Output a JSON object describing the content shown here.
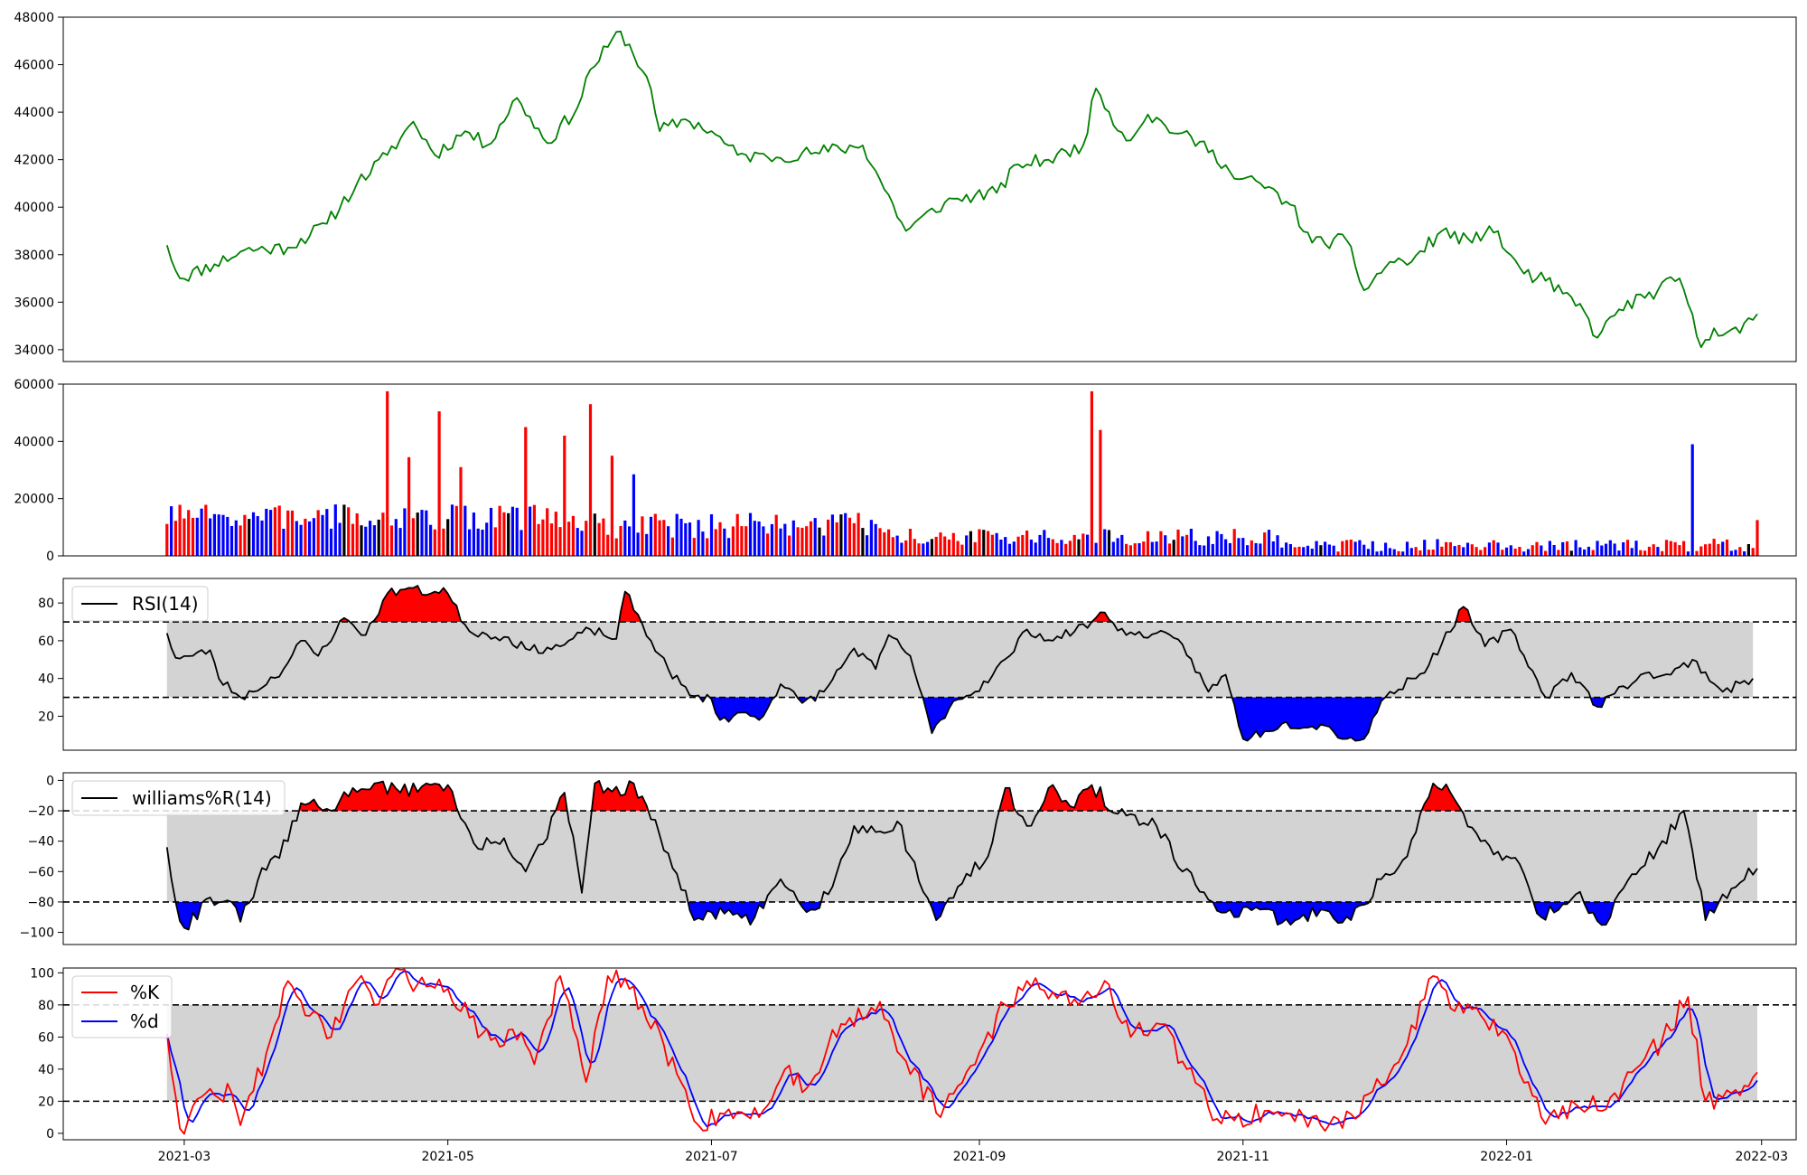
{
  "chart_data": [
    {
      "type": "line",
      "panel": "price",
      "yticks": [
        "34000",
        "36000",
        "38000",
        "40000",
        "42000",
        "44000",
        "46000",
        "48000"
      ],
      "ylim": [
        33500,
        48000
      ],
      "line_color": "#008000",
      "anchor_points": [
        [
          "2021-02-25",
          38400
        ],
        [
          "2021-02-28",
          37000
        ],
        [
          "2021-03-08",
          37600
        ],
        [
          "2021-03-15",
          38200
        ],
        [
          "2021-03-25",
          38300
        ],
        [
          "2021-04-03",
          39300
        ],
        [
          "2021-04-10",
          41000
        ],
        [
          "2021-04-17",
          42200
        ],
        [
          "2021-04-23",
          43600
        ],
        [
          "2021-04-28",
          42200
        ],
        [
          "2021-05-05",
          43200
        ],
        [
          "2021-05-10",
          42600
        ],
        [
          "2021-05-17",
          44600
        ],
        [
          "2021-05-24",
          42700
        ],
        [
          "2021-05-31",
          44200
        ],
        [
          "2021-06-03",
          45800
        ],
        [
          "2021-06-10",
          47400
        ],
        [
          "2021-06-16",
          45500
        ],
        [
          "2021-06-19",
          43200
        ],
        [
          "2021-06-25",
          43700
        ],
        [
          "2021-07-01",
          43200
        ],
        [
          "2021-07-07",
          42200
        ],
        [
          "2021-07-14",
          42100
        ],
        [
          "2021-07-25",
          42300
        ],
        [
          "2021-08-05",
          42600
        ],
        [
          "2021-08-15",
          39000
        ],
        [
          "2021-08-24",
          40200
        ],
        [
          "2021-08-31",
          40500
        ],
        [
          "2021-09-05",
          40600
        ],
        [
          "2021-09-10",
          41800
        ],
        [
          "2021-09-17",
          42000
        ],
        [
          "2021-09-25",
          42600
        ],
        [
          "2021-09-28",
          45000
        ],
        [
          "2021-10-05",
          42800
        ],
        [
          "2021-10-10",
          43900
        ],
        [
          "2021-10-17",
          43100
        ],
        [
          "2021-10-25",
          42400
        ],
        [
          "2021-10-30",
          41200
        ],
        [
          "2021-11-05",
          41000
        ],
        [
          "2021-11-12",
          40100
        ],
        [
          "2021-11-17",
          38500
        ],
        [
          "2021-11-25",
          38600
        ],
        [
          "2021-11-29",
          36500
        ],
        [
          "2021-12-05",
          37700
        ],
        [
          "2021-12-10",
          37700
        ],
        [
          "2021-12-17",
          39000
        ],
        [
          "2021-12-24",
          38500
        ],
        [
          "2021-12-28",
          39200
        ],
        [
          "2022-01-05",
          37200
        ],
        [
          "2022-01-10",
          36900
        ],
        [
          "2022-01-19",
          35600
        ],
        [
          "2022-01-22",
          34500
        ],
        [
          "2022-01-27",
          35700
        ],
        [
          "2022-02-05",
          36500
        ],
        [
          "2022-02-10",
          37000
        ],
        [
          "2022-02-15",
          34100
        ],
        [
          "2022-02-18",
          34900
        ],
        [
          "2022-02-24",
          34700
        ],
        [
          "2022-02-28",
          35500
        ]
      ]
    },
    {
      "type": "bar",
      "panel": "volume",
      "yticks": [
        "0",
        "20000",
        "40000",
        "60000"
      ],
      "ylim": [
        0,
        60000
      ],
      "colors": {
        "up": "#ff0000",
        "down": "#0000ff",
        "flat": "#000000"
      },
      "spikes": [
        [
          "2021-04-17",
          57500,
          "up"
        ],
        [
          "2021-04-22",
          34500,
          "up"
        ],
        [
          "2021-04-29",
          50500,
          "up"
        ],
        [
          "2021-05-04",
          31000,
          "up"
        ],
        [
          "2021-05-19",
          45000,
          "up"
        ],
        [
          "2021-05-28",
          42000,
          "up"
        ],
        [
          "2021-06-03",
          53000,
          "up"
        ],
        [
          "2021-06-08",
          35000,
          "up"
        ],
        [
          "2021-06-13",
          28500,
          "down"
        ],
        [
          "2021-09-27",
          57500,
          "up"
        ],
        [
          "2021-09-29",
          44000,
          "up"
        ],
        [
          "2022-02-13",
          39000,
          "down"
        ],
        [
          "2022-02-28",
          12500,
          "up"
        ]
      ]
    },
    {
      "type": "line",
      "panel": "rsi",
      "legend": "RSI(14)",
      "yticks": [
        "20",
        "40",
        "60",
        "80"
      ],
      "ylim": [
        2,
        93
      ],
      "thresholds": [
        30,
        70
      ],
      "anchor_points": [
        [
          "2021-02-25",
          64
        ],
        [
          "2021-02-27",
          51
        ],
        [
          "2021-03-03",
          52
        ],
        [
          "2021-03-07",
          55
        ],
        [
          "2021-03-09",
          40
        ],
        [
          "2021-03-14",
          30
        ],
        [
          "2021-03-17",
          33
        ],
        [
          "2021-03-24",
          45
        ],
        [
          "2021-03-28",
          60
        ],
        [
          "2021-04-01",
          52
        ],
        [
          "2021-04-07",
          72
        ],
        [
          "2021-04-12",
          63
        ],
        [
          "2021-04-17",
          85
        ],
        [
          "2021-04-22",
          88
        ],
        [
          "2021-04-27",
          85
        ],
        [
          "2021-04-30",
          88
        ],
        [
          "2021-05-06",
          65
        ],
        [
          "2021-05-14",
          62
        ],
        [
          "2021-05-20",
          55
        ],
        [
          "2021-05-27",
          57
        ],
        [
          "2021-06-03",
          66
        ],
        [
          "2021-06-09",
          61
        ],
        [
          "2021-06-11",
          86
        ],
        [
          "2021-06-17",
          60
        ],
        [
          "2021-06-21",
          45
        ],
        [
          "2021-06-26",
          31
        ],
        [
          "2021-07-01",
          29
        ],
        [
          "2021-07-03",
          18
        ],
        [
          "2021-07-09",
          22
        ],
        [
          "2021-07-12",
          18
        ],
        [
          "2021-07-17",
          37
        ],
        [
          "2021-07-22",
          27
        ],
        [
          "2021-07-27",
          33
        ],
        [
          "2021-08-03",
          56
        ],
        [
          "2021-08-08",
          45
        ],
        [
          "2021-08-11",
          63
        ],
        [
          "2021-08-16",
          52
        ],
        [
          "2021-08-21",
          11
        ],
        [
          "2021-08-26",
          28
        ],
        [
          "2021-08-31",
          33
        ],
        [
          "2021-09-08",
          52
        ],
        [
          "2021-09-12",
          66
        ],
        [
          "2021-09-18",
          60
        ],
        [
          "2021-09-27",
          70
        ],
        [
          "2021-09-30",
          75
        ],
        [
          "2021-10-05",
          63
        ],
        [
          "2021-10-12",
          64
        ],
        [
          "2021-10-18",
          58
        ],
        [
          "2021-10-24",
          33
        ],
        [
          "2021-10-28",
          42
        ],
        [
          "2021-11-01",
          8
        ],
        [
          "2021-11-06",
          12
        ],
        [
          "2021-11-10",
          16
        ],
        [
          "2021-11-20",
          15
        ],
        [
          "2021-11-25",
          8
        ],
        [
          "2021-11-29",
          8
        ],
        [
          "2021-12-03",
          28
        ],
        [
          "2021-12-10",
          40
        ],
        [
          "2021-12-14",
          47
        ],
        [
          "2021-12-22",
          78
        ],
        [
          "2021-12-27",
          57
        ],
        [
          "2022-01-02",
          66
        ],
        [
          "2022-01-10",
          30
        ],
        [
          "2022-01-16",
          43
        ],
        [
          "2022-01-22",
          25
        ],
        [
          "2022-01-26",
          32
        ],
        [
          "2022-02-01",
          42
        ],
        [
          "2022-02-08",
          42
        ],
        [
          "2022-02-13",
          50
        ],
        [
          "2022-02-20",
          33
        ],
        [
          "2022-02-27",
          40
        ]
      ]
    },
    {
      "type": "line",
      "panel": "williams",
      "legend": "williams%R(14)",
      "yticks": [
        "0",
        "−20",
        "−40",
        "−60",
        "−80",
        "−100"
      ],
      "ylim": [
        -108,
        5
      ],
      "thresholds": [
        -20,
        -80
      ],
      "anchor_points": [
        [
          "2021-02-25",
          -44
        ],
        [
          "2021-02-27",
          -80
        ],
        [
          "2021-03-01",
          -97
        ],
        [
          "2021-03-07",
          -77
        ],
        [
          "2021-03-11",
          -79
        ],
        [
          "2021-03-14",
          -93
        ],
        [
          "2021-03-18",
          -66
        ],
        [
          "2021-03-25",
          -40
        ],
        [
          "2021-03-28",
          -15
        ],
        [
          "2021-04-04",
          -20
        ],
        [
          "2021-04-09",
          -5
        ],
        [
          "2021-04-14",
          -2
        ],
        [
          "2021-04-20",
          -8
        ],
        [
          "2021-04-26",
          -2
        ],
        [
          "2021-05-01",
          -3
        ],
        [
          "2021-05-04",
          -25
        ],
        [
          "2021-05-08",
          -45
        ],
        [
          "2021-05-14",
          -38
        ],
        [
          "2021-05-19",
          -60
        ],
        [
          "2021-05-23",
          -42
        ],
        [
          "2021-05-28",
          -8
        ],
        [
          "2021-06-01",
          -74
        ],
        [
          "2021-06-04",
          -2
        ],
        [
          "2021-06-10",
          -10
        ],
        [
          "2021-06-13",
          -2
        ],
        [
          "2021-06-21",
          -48
        ],
        [
          "2021-06-27",
          -92
        ],
        [
          "2021-07-05",
          -85
        ],
        [
          "2021-07-10",
          -95
        ],
        [
          "2021-07-17",
          -65
        ],
        [
          "2021-07-24",
          -85
        ],
        [
          "2021-07-29",
          -70
        ],
        [
          "2021-08-03",
          -30
        ],
        [
          "2021-08-08",
          -34
        ],
        [
          "2021-08-13",
          -27
        ],
        [
          "2021-08-16",
          -50
        ],
        [
          "2021-08-22",
          -92
        ],
        [
          "2021-08-27",
          -70
        ],
        [
          "2021-09-03",
          -50
        ],
        [
          "2021-09-07",
          -5
        ],
        [
          "2021-09-12",
          -30
        ],
        [
          "2021-09-17",
          -5
        ],
        [
          "2021-09-23",
          -18
        ],
        [
          "2021-09-27",
          -3
        ],
        [
          "2021-10-03",
          -22
        ],
        [
          "2021-10-12",
          -30
        ],
        [
          "2021-10-18",
          -60
        ],
        [
          "2021-10-25",
          -80
        ],
        [
          "2021-10-30",
          -90
        ],
        [
          "2021-11-05",
          -85
        ],
        [
          "2021-11-12",
          -95
        ],
        [
          "2021-11-19",
          -85
        ],
        [
          "2021-11-26",
          -92
        ],
        [
          "2021-12-03",
          -65
        ],
        [
          "2021-12-09",
          -50
        ],
        [
          "2021-12-15",
          -2
        ],
        [
          "2021-12-19",
          -8
        ],
        [
          "2021-12-26",
          -40
        ],
        [
          "2022-01-04",
          -55
        ],
        [
          "2022-01-09",
          -90
        ],
        [
          "2022-01-17",
          -75
        ],
        [
          "2022-01-24",
          -95
        ],
        [
          "2022-01-29",
          -66
        ],
        [
          "2022-02-05",
          -45
        ],
        [
          "2022-02-11",
          -20
        ],
        [
          "2022-02-16",
          -92
        ],
        [
          "2022-02-20",
          -75
        ],
        [
          "2022-02-28",
          -58
        ]
      ]
    },
    {
      "type": "line",
      "panel": "stochastic",
      "legend_k": "%K",
      "legend_d": "%d",
      "yticks": [
        "0",
        "20",
        "40",
        "60",
        "80",
        "100"
      ],
      "ylim": [
        -4,
        103
      ],
      "thresholds": [
        20,
        80
      ],
      "k_color": "#ff0000",
      "d_color": "#0000ff",
      "anchor_points": [
        [
          "2021-02-25",
          62
        ],
        [
          "2021-02-28",
          3
        ],
        [
          "2021-03-06",
          25
        ],
        [
          "2021-03-12",
          25
        ],
        [
          "2021-03-14",
          5
        ],
        [
          "2021-03-20",
          50
        ],
        [
          "2021-03-24",
          90
        ],
        [
          "2021-03-31",
          76
        ],
        [
          "2021-04-04",
          60
        ],
        [
          "2021-04-10",
          95
        ],
        [
          "2021-04-14",
          80
        ],
        [
          "2021-04-18",
          98
        ],
        [
          "2021-04-24",
          93
        ],
        [
          "2021-04-29",
          96
        ],
        [
          "2021-05-06",
          72
        ],
        [
          "2021-05-11",
          58
        ],
        [
          "2021-05-18",
          63
        ],
        [
          "2021-05-21",
          43
        ],
        [
          "2021-05-27",
          98
        ],
        [
          "2021-06-02",
          32
        ],
        [
          "2021-06-07",
          98
        ],
        [
          "2021-06-12",
          90
        ],
        [
          "2021-06-20",
          55
        ],
        [
          "2021-06-28",
          5
        ],
        [
          "2021-07-05",
          15
        ],
        [
          "2021-07-12",
          10
        ],
        [
          "2021-07-18",
          40
        ],
        [
          "2021-07-23",
          28
        ],
        [
          "2021-07-28",
          55
        ],
        [
          "2021-08-02",
          72
        ],
        [
          "2021-08-09",
          82
        ],
        [
          "2021-08-15",
          45
        ],
        [
          "2021-08-23",
          10
        ],
        [
          "2021-08-30",
          42
        ],
        [
          "2021-09-07",
          80
        ],
        [
          "2021-09-12",
          95
        ],
        [
          "2021-09-18",
          88
        ],
        [
          "2021-09-24",
          80
        ],
        [
          "2021-09-30",
          95
        ],
        [
          "2021-10-06",
          60
        ],
        [
          "2021-10-13",
          68
        ],
        [
          "2021-10-19",
          40
        ],
        [
          "2021-10-24",
          16
        ],
        [
          "2021-10-30",
          8
        ],
        [
          "2021-11-06",
          14
        ],
        [
          "2021-11-12",
          12
        ],
        [
          "2021-11-19",
          5
        ],
        [
          "2021-11-26",
          12
        ],
        [
          "2021-12-03",
          30
        ],
        [
          "2021-12-08",
          50
        ],
        [
          "2021-12-15",
          98
        ],
        [
          "2021-12-22",
          75
        ],
        [
          "2021-12-27",
          70
        ],
        [
          "2022-01-03",
          50
        ],
        [
          "2022-01-09",
          10
        ],
        [
          "2022-01-17",
          18
        ],
        [
          "2022-01-24",
          15
        ],
        [
          "2022-01-30",
          38
        ],
        [
          "2022-02-06",
          58
        ],
        [
          "2022-02-12",
          85
        ],
        [
          "2022-02-16",
          20
        ],
        [
          "2022-02-22",
          25
        ],
        [
          "2022-02-28",
          38
        ]
      ]
    }
  ],
  "x_axis": {
    "start": "2021-02-01",
    "end": "2022-03-09",
    "tick_dates": [
      "2021-03-01",
      "2021-05-01",
      "2021-07-01",
      "2021-09-01",
      "2021-11-01",
      "2022-01-01",
      "2022-03-01"
    ],
    "tick_labels": [
      "2021-03",
      "2021-05",
      "2021-07",
      "2021-09",
      "2021-11",
      "2022-01",
      "2022-03"
    ]
  },
  "colors": {
    "band": "#d3d3d3",
    "overbought": "#ff0000",
    "oversold": "#0000ff",
    "line": "#000000"
  }
}
